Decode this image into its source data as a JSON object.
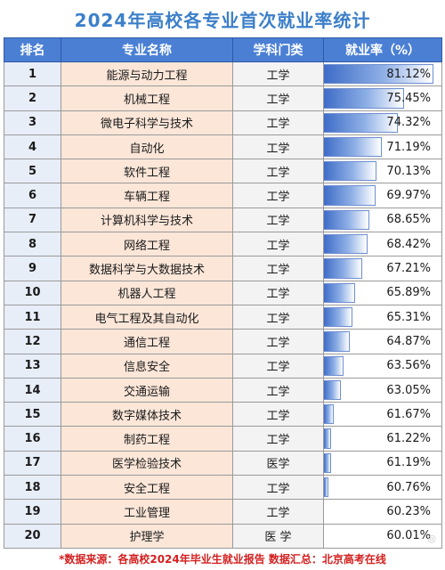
{
  "title": "2024年高校各专业首次就业率统计",
  "headers": {
    "rank": "排名",
    "major": "专业名称",
    "discipline": "学科门类",
    "rate": "就业率（%）"
  },
  "rows": [
    {
      "rank": "1",
      "major": "能源与动力工程",
      "discipline": "工学",
      "rate": "81.12%",
      "value": 81.12
    },
    {
      "rank": "2",
      "major": "机械工程",
      "discipline": "工学",
      "rate": "75.45%",
      "value": 75.45
    },
    {
      "rank": "3",
      "major": "微电子科学与技术",
      "discipline": "工学",
      "rate": "74.32%",
      "value": 74.32
    },
    {
      "rank": "4",
      "major": "自动化",
      "discipline": "工学",
      "rate": "71.19%",
      "value": 71.19
    },
    {
      "rank": "5",
      "major": "软件工程",
      "discipline": "工学",
      "rate": "70.13%",
      "value": 70.13
    },
    {
      "rank": "6",
      "major": "车辆工程",
      "discipline": "工学",
      "rate": "69.97%",
      "value": 69.97
    },
    {
      "rank": "7",
      "major": "计算机科学与技术",
      "discipline": "工学",
      "rate": "68.65%",
      "value": 68.65
    },
    {
      "rank": "8",
      "major": "网络工程",
      "discipline": "工学",
      "rate": "68.42%",
      "value": 68.42
    },
    {
      "rank": "9",
      "major": "数据科学与大数据技术",
      "discipline": "工学",
      "rate": "67.21%",
      "value": 67.21
    },
    {
      "rank": "10",
      "major": "机器人工程",
      "discipline": "工学",
      "rate": "65.89%",
      "value": 65.89
    },
    {
      "rank": "11",
      "major": "电气工程及其自动化",
      "discipline": "工学",
      "rate": "65.31%",
      "value": 65.31
    },
    {
      "rank": "12",
      "major": "通信工程",
      "discipline": "工学",
      "rate": "64.87%",
      "value": 64.87
    },
    {
      "rank": "13",
      "major": "信息安全",
      "discipline": "工学",
      "rate": "63.56%",
      "value": 63.56
    },
    {
      "rank": "14",
      "major": "交通运输",
      "discipline": "工学",
      "rate": "63.05%",
      "value": 63.05
    },
    {
      "rank": "15",
      "major": "数字媒体技术",
      "discipline": "工学",
      "rate": "61.67%",
      "value": 61.67
    },
    {
      "rank": "16",
      "major": "制药工程",
      "discipline": "工学",
      "rate": "61.22%",
      "value": 61.22
    },
    {
      "rank": "17",
      "major": "医学检验技术",
      "discipline": "医学",
      "rate": "61.19%",
      "value": 61.19
    },
    {
      "rank": "18",
      "major": "安全工程",
      "discipline": "工学",
      "rate": "60.76%",
      "value": 60.76
    },
    {
      "rank": "19",
      "major": "工业管理",
      "discipline": "工学",
      "rate": "60.23%",
      "value": 60.23
    },
    {
      "rank": "20",
      "major": "护理学",
      "discipline": "医 学",
      "rate": "60.01%",
      "value": 60.01
    }
  ],
  "footer": "*数据来源：各高校2024年毕业生就业报告  数据汇总：北京高考在线",
  "colors": {
    "title": "#3c7fc9",
    "header_bg": "#4a7fd4",
    "major_bg": "#fbe6d8",
    "bar": "#3e6cc7",
    "footer": "#d42020"
  },
  "bar_scale": {
    "min": 60,
    "max": 82
  }
}
